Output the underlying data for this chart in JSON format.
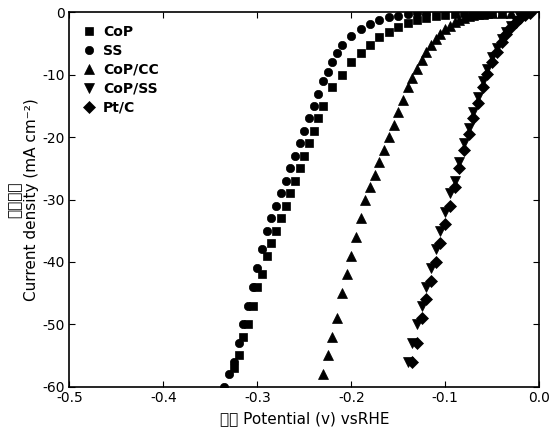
{
  "title": "",
  "xlabel": "电势 Potential (v) vsRHE",
  "ylabel": "电流密度\nCurrent density (mA cm⁻²)",
  "xlim": [
    -0.5,
    0.0
  ],
  "ylim": [
    -60,
    0
  ],
  "xticks": [
    -0.5,
    -0.4,
    -0.3,
    -0.2,
    -0.1,
    0.0
  ],
  "yticks": [
    0,
    -10,
    -20,
    -30,
    -40,
    -50,
    -60
  ],
  "series": [
    {
      "label": "CoP",
      "marker": "s",
      "markersize": 6,
      "x": [
        -0.325,
        -0.32,
        -0.315,
        -0.31,
        -0.305,
        -0.3,
        -0.295,
        -0.29,
        -0.285,
        -0.28,
        -0.275,
        -0.27,
        -0.265,
        -0.26,
        -0.255,
        -0.25,
        -0.245,
        -0.24,
        -0.235,
        -0.23,
        -0.22,
        -0.21,
        -0.2,
        -0.19,
        -0.18,
        -0.17,
        -0.16,
        -0.15,
        -0.14,
        -0.13,
        -0.12,
        -0.11,
        -0.1,
        -0.09,
        -0.08,
        -0.07,
        -0.06,
        -0.05,
        -0.04
      ],
      "y": [
        -57,
        -55,
        -52,
        -50,
        -47,
        -44,
        -42,
        -39,
        -37,
        -35,
        -33,
        -31,
        -29,
        -27,
        -25,
        -23,
        -21,
        -19,
        -17,
        -15,
        -12,
        -10,
        -8,
        -6.5,
        -5.2,
        -4.0,
        -3.1,
        -2.3,
        -1.7,
        -1.2,
        -0.85,
        -0.55,
        -0.35,
        -0.22,
        -0.13,
        -0.08,
        -0.04,
        -0.02,
        -0.01
      ]
    },
    {
      "label": "SS",
      "marker": "o",
      "markersize": 6,
      "x": [
        -0.335,
        -0.33,
        -0.325,
        -0.32,
        -0.315,
        -0.31,
        -0.305,
        -0.3,
        -0.295,
        -0.29,
        -0.285,
        -0.28,
        -0.275,
        -0.27,
        -0.265,
        -0.26,
        -0.255,
        -0.25,
        -0.245,
        -0.24,
        -0.235,
        -0.23,
        -0.225,
        -0.22,
        -0.215,
        -0.21,
        -0.2,
        -0.19,
        -0.18,
        -0.17,
        -0.16,
        -0.15,
        -0.14,
        -0.13,
        -0.12
      ],
      "y": [
        -60,
        -58,
        -56,
        -53,
        -50,
        -47,
        -44,
        -41,
        -38,
        -35,
        -33,
        -31,
        -29,
        -27,
        -25,
        -23,
        -21,
        -19,
        -17,
        -15,
        -13,
        -11,
        -9.5,
        -8.0,
        -6.5,
        -5.2,
        -3.7,
        -2.6,
        -1.8,
        -1.2,
        -0.8,
        -0.5,
        -0.3,
        -0.15,
        -0.07
      ]
    },
    {
      "label": "CoP/CC",
      "marker": "^",
      "markersize": 7,
      "x": [
        -0.23,
        -0.225,
        -0.22,
        -0.215,
        -0.21,
        -0.205,
        -0.2,
        -0.195,
        -0.19,
        -0.185,
        -0.18,
        -0.175,
        -0.17,
        -0.165,
        -0.16,
        -0.155,
        -0.15,
        -0.145,
        -0.14,
        -0.135,
        -0.13,
        -0.125,
        -0.12,
        -0.115,
        -0.11,
        -0.105,
        -0.1,
        -0.095,
        -0.09,
        -0.085,
        -0.08,
        -0.075,
        -0.07,
        -0.065,
        -0.06,
        -0.055,
        -0.05,
        -0.04,
        -0.03
      ],
      "y": [
        -58,
        -55,
        -52,
        -49,
        -45,
        -42,
        -39,
        -36,
        -33,
        -30,
        -28,
        -26,
        -24,
        -22,
        -20,
        -18,
        -16,
        -14,
        -12,
        -10.5,
        -9,
        -7.7,
        -6.4,
        -5.3,
        -4.3,
        -3.4,
        -2.7,
        -2.1,
        -1.6,
        -1.2,
        -0.85,
        -0.62,
        -0.43,
        -0.29,
        -0.18,
        -0.11,
        -0.06,
        -0.02,
        -0.01
      ]
    },
    {
      "label": "CoP/SS",
      "marker": "v",
      "markersize": 7,
      "x": [
        -0.14,
        -0.135,
        -0.13,
        -0.125,
        -0.12,
        -0.115,
        -0.11,
        -0.105,
        -0.1,
        -0.095,
        -0.09,
        -0.085,
        -0.08,
        -0.075,
        -0.07,
        -0.065,
        -0.06,
        -0.055,
        -0.05,
        -0.045,
        -0.04,
        -0.035,
        -0.03,
        -0.025,
        -0.02,
        -0.015,
        -0.01
      ],
      "y": [
        -56,
        -53,
        -50,
        -47,
        -44,
        -41,
        -38,
        -35,
        -32,
        -29,
        -27,
        -24,
        -21,
        -18.5,
        -16,
        -13.5,
        -11,
        -9,
        -7.2,
        -5.7,
        -4.3,
        -3.1,
        -2.2,
        -1.4,
        -0.8,
        -0.35,
        -0.12
      ]
    },
    {
      "label": "Pt/C",
      "marker": "D",
      "markersize": 6,
      "x": [
        -0.135,
        -0.13,
        -0.125,
        -0.12,
        -0.115,
        -0.11,
        -0.105,
        -0.1,
        -0.095,
        -0.09,
        -0.085,
        -0.08,
        -0.075,
        -0.07,
        -0.065,
        -0.06,
        -0.055,
        -0.05,
        -0.045,
        -0.04,
        -0.035,
        -0.03,
        -0.025,
        -0.02,
        -0.015,
        -0.01
      ],
      "y": [
        -56,
        -53,
        -49,
        -46,
        -43,
        -40,
        -37,
        -34,
        -31,
        -28,
        -25,
        -22,
        -19.5,
        -17,
        -14.5,
        -12,
        -9.8,
        -8.0,
        -6.3,
        -4.8,
        -3.5,
        -2.4,
        -1.5,
        -0.85,
        -0.38,
        -0.12
      ]
    }
  ]
}
